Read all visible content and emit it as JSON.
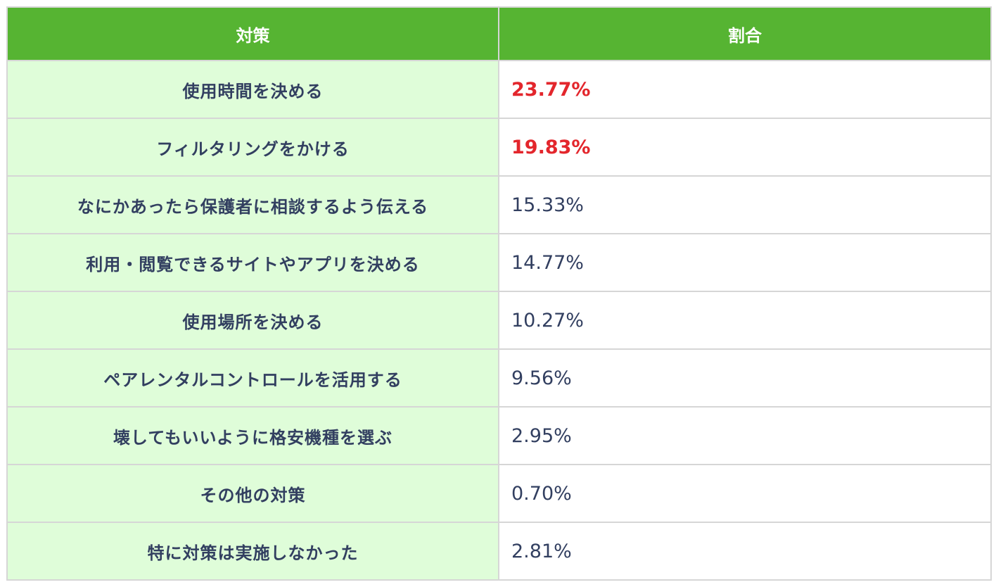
{
  "table": {
    "headers": [
      "対策",
      "割合"
    ],
    "colors": {
      "header_bg": "#56b432",
      "header_text": "#ffffff",
      "measure_bg": "#dffdd9",
      "text": "#323f60",
      "highlight": "#e3262c",
      "border": "#d6d6d6"
    },
    "rows": [
      {
        "measure": "使用時間を決める",
        "ratio": "23.77%",
        "highlight": true
      },
      {
        "measure": "フィルタリングをかける",
        "ratio": "19.83%",
        "highlight": true
      },
      {
        "measure": "なにかあったら保護者に相談するよう伝える",
        "ratio": "15.33%",
        "highlight": false
      },
      {
        "measure": "利用・閲覧できるサイトやアプリを決める",
        "ratio": "14.77%",
        "highlight": false
      },
      {
        "measure": "使用場所を決める",
        "ratio": "10.27%",
        "highlight": false
      },
      {
        "measure": "ペアレンタルコントロールを活用する",
        "ratio": "9.56%",
        "highlight": false
      },
      {
        "measure": "壊してもいいように格安機種を選ぶ",
        "ratio": "2.95%",
        "highlight": false
      },
      {
        "measure": "その他の対策",
        "ratio": "0.70%",
        "highlight": false
      },
      {
        "measure": "特に対策は実施しなかった",
        "ratio": "2.81%",
        "highlight": false
      }
    ]
  }
}
